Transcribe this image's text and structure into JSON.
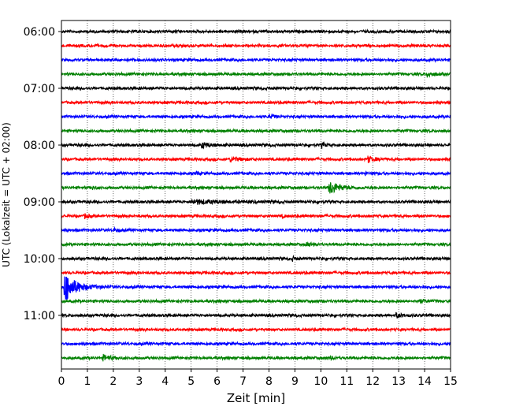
{
  "chart_data": {
    "type": "line",
    "title": "",
    "xlabel": "Zeit  [min]",
    "ylabel": "UTC (Lokalzeit = UTC + 02:00)",
    "xlim": [
      0,
      15
    ],
    "x_ticks": [
      0,
      1,
      2,
      3,
      4,
      5,
      6,
      7,
      8,
      9,
      10,
      11,
      12,
      13,
      14,
      15
    ],
    "x_tick_labels": [
      "0",
      "1",
      "2",
      "3",
      "4",
      "5",
      "6",
      "7",
      "8",
      "9",
      "10",
      "11",
      "12",
      "13",
      "14",
      "15"
    ],
    "y_tick_labels": [
      "06:00",
      "07:00",
      "08:00",
      "09:00",
      "10:00",
      "11:00"
    ],
    "grid": "vertical-dotted",
    "trace_minutes": 15,
    "colors": [
      "#000000",
      "#ff0000",
      "#0000ff",
      "#008000"
    ],
    "traces": [
      {
        "start": "06:00",
        "color": "#000000",
        "events": []
      },
      {
        "start": "06:15",
        "color": "#ff0000",
        "events": []
      },
      {
        "start": "06:30",
        "color": "#0000ff",
        "events": []
      },
      {
        "start": "06:45",
        "color": "#008000",
        "events": [
          {
            "t": 14.1,
            "amp": 0.35,
            "dur": 0.5
          }
        ]
      },
      {
        "start": "07:00",
        "color": "#000000",
        "events": []
      },
      {
        "start": "07:15",
        "color": "#ff0000",
        "events": []
      },
      {
        "start": "07:30",
        "color": "#0000ff",
        "events": [
          {
            "t": 8.0,
            "amp": 0.25,
            "dur": 0.4
          }
        ]
      },
      {
        "start": "07:45",
        "color": "#008000",
        "events": []
      },
      {
        "start": "08:00",
        "color": "#000000",
        "events": [
          {
            "t": 5.4,
            "amp": 0.4,
            "dur": 0.6
          },
          {
            "t": 10.0,
            "amp": 0.3,
            "dur": 0.4
          }
        ]
      },
      {
        "start": "08:15",
        "color": "#ff0000",
        "events": [
          {
            "t": 6.5,
            "amp": 0.3,
            "dur": 0.8
          },
          {
            "t": 11.8,
            "amp": 0.45,
            "dur": 0.5
          }
        ]
      },
      {
        "start": "08:30",
        "color": "#0000ff",
        "events": [
          {
            "t": 5.2,
            "amp": 0.6,
            "dur": 0.1
          },
          {
            "t": 11.7,
            "amp": 0.4,
            "dur": 0.1
          }
        ]
      },
      {
        "start": "08:45",
        "color": "#008000",
        "events": [
          {
            "t": 10.3,
            "amp": 1.0,
            "dur": 0.8
          },
          {
            "t": 1.2,
            "amp": 0.2,
            "dur": 0.3
          }
        ]
      },
      {
        "start": "09:00",
        "color": "#000000",
        "events": [
          {
            "t": 5.0,
            "amp": 0.3,
            "dur": 2.3
          }
        ]
      },
      {
        "start": "09:15",
        "color": "#ff0000",
        "events": [
          {
            "t": 0.9,
            "amp": 0.3,
            "dur": 0.3
          },
          {
            "t": 8.5,
            "amp": 0.25,
            "dur": 0.2
          }
        ]
      },
      {
        "start": "09:30",
        "color": "#0000ff",
        "events": [
          {
            "t": 2.0,
            "amp": 0.25,
            "dur": 0.3
          }
        ]
      },
      {
        "start": "09:45",
        "color": "#008000",
        "events": [
          {
            "t": 9.4,
            "amp": 0.35,
            "dur": 0.4
          }
        ]
      },
      {
        "start": "10:00",
        "color": "#000000",
        "events": [
          {
            "t": 8.9,
            "amp": 0.25,
            "dur": 0.3
          }
        ]
      },
      {
        "start": "10:15",
        "color": "#ff0000",
        "events": []
      },
      {
        "start": "10:30",
        "color": "#0000ff",
        "events": [
          {
            "t": 0.1,
            "amp": 2.2,
            "dur": 0.9
          }
        ]
      },
      {
        "start": "10:45",
        "color": "#008000",
        "events": [
          {
            "t": 13.7,
            "amp": 0.35,
            "dur": 0.5
          }
        ]
      },
      {
        "start": "11:00",
        "color": "#000000",
        "events": [
          {
            "t": 12.9,
            "amp": 0.3,
            "dur": 0.5
          }
        ]
      },
      {
        "start": "11:15",
        "color": "#ff0000",
        "events": []
      },
      {
        "start": "11:30",
        "color": "#0000ff",
        "events": []
      },
      {
        "start": "11:45",
        "color": "#008000",
        "events": [
          {
            "t": 1.6,
            "amp": 0.4,
            "dur": 0.6
          },
          {
            "t": 10.3,
            "amp": 0.2,
            "dur": 0.4
          }
        ]
      }
    ]
  }
}
